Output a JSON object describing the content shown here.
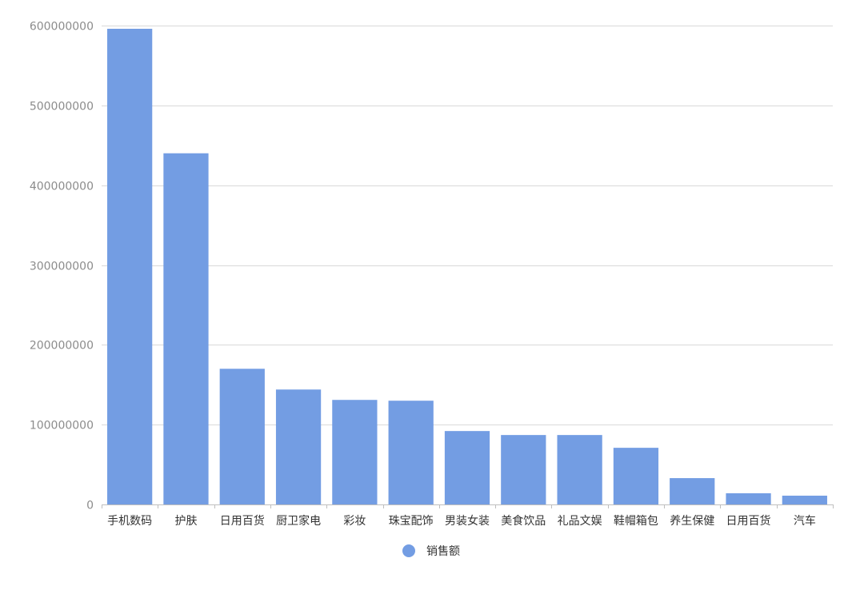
{
  "colors": {
    "bar": "#739de3",
    "grid": "#d9d9d9",
    "axis": "#bfbfbf",
    "tick_text": "#8c8c8c",
    "category_text": "#333333"
  },
  "chart_data": {
    "type": "bar",
    "title": "",
    "xlabel": "",
    "ylabel": "",
    "categories": [
      "手机数码",
      "护肤",
      "日用百货",
      "厨卫家电",
      "彩妆",
      "珠宝配饰",
      "男装女装",
      "美食饮品",
      "礼品文娱",
      "鞋帽箱包",
      "养生保健",
      "日用百货",
      "汽车"
    ],
    "series": [
      {
        "name": "销售额",
        "values": [
          596000000,
          440000000,
          170000000,
          144000000,
          131000000,
          130000000,
          92000000,
          87000000,
          87000000,
          71000000,
          33000000,
          14000000,
          11000000
        ]
      }
    ],
    "ylim": [
      0,
      600000000
    ],
    "yticks": [
      0,
      100000000,
      200000000,
      300000000,
      400000000,
      500000000,
      600000000
    ],
    "ytick_labels": [
      "0",
      "100000000",
      "200000000",
      "300000000",
      "400000000",
      "500000000",
      "600000000"
    ],
    "grid": true,
    "legend": "bottom-center"
  }
}
